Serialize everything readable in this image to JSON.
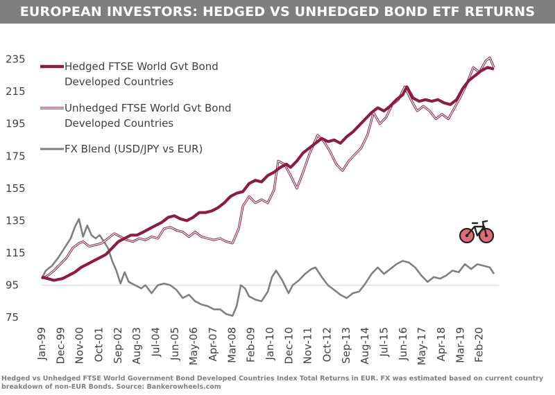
{
  "title": "EUROPEAN INVESTORS: HEDGED VS UNHEDGED BOND ETF RETURNS",
  "footnote": "Hedged vs Unhedged FTSE World Government Bond Developed Countries Index Total Returns in EUR. FX was estimated based on current country breakdown of non-EUR Bonds. Source: Bankerowheels.com",
  "icon": "bicycle-icon",
  "colors": {
    "hedged": "#8b1e3f",
    "unhedged": "#8b1e3f",
    "fx": "#7f7f7f",
    "bike": "#e06c7a"
  },
  "chart_data": {
    "type": "line",
    "title": "EUROPEAN INVESTORS: HEDGED VS UNHEDGED BOND ETF RETURNS",
    "ylim": [
      75,
      240
    ],
    "yticks": [
      75,
      95,
      115,
      135,
      155,
      175,
      195,
      215,
      235
    ],
    "xrange": [
      1999.0,
      2021.0
    ],
    "xticks": [
      {
        "label": "Jan-99",
        "x": 1999.0
      },
      {
        "label": "Dec-99",
        "x": 1999.92
      },
      {
        "label": "Nov-00",
        "x": 2000.83
      },
      {
        "label": "Oct-01",
        "x": 2001.75
      },
      {
        "label": "Sep-02",
        "x": 2002.67
      },
      {
        "label": "Aug-03",
        "x": 2003.58
      },
      {
        "label": "Jul-04",
        "x": 2004.5
      },
      {
        "label": "Jun-05",
        "x": 2005.42
      },
      {
        "label": "May-06",
        "x": 2006.33
      },
      {
        "label": "Apr-07",
        "x": 2007.25
      },
      {
        "label": "Mar-08",
        "x": 2008.17
      },
      {
        "label": "Feb-09",
        "x": 2009.08
      },
      {
        "label": "Jan-10",
        "x": 2010.0
      },
      {
        "label": "Dec-10",
        "x": 2010.92
      },
      {
        "label": "Nov-11",
        "x": 2011.83
      },
      {
        "label": "Oct-12",
        "x": 2012.75
      },
      {
        "label": "Sep-13",
        "x": 2013.67
      },
      {
        "label": "Aug-14",
        "x": 2014.58
      },
      {
        "label": "Jul-15",
        "x": 2015.5
      },
      {
        "label": "Jun-16",
        "x": 2016.42
      },
      {
        "label": "May-17",
        "x": 2017.33
      },
      {
        "label": "Apr-18",
        "x": 2018.25
      },
      {
        "label": "Mar-19",
        "x": 2019.17
      },
      {
        "label": "Feb-20",
        "x": 2020.08
      }
    ],
    "series": [
      {
        "name": "Hedged FTSE World Gvt Bond Developed Countries",
        "legend_lines": [
          "Hedged FTSE World Gvt Bond",
          "Developed Countries"
        ],
        "style": "thick",
        "points": [
          [
            1999.0,
            100
          ],
          [
            1999.3,
            99
          ],
          [
            1999.6,
            98
          ],
          [
            2000.0,
            99
          ],
          [
            2000.3,
            101
          ],
          [
            2000.6,
            103
          ],
          [
            2000.9,
            106
          ],
          [
            2001.2,
            108
          ],
          [
            2001.5,
            110
          ],
          [
            2001.8,
            112
          ],
          [
            2002.1,
            114
          ],
          [
            2002.4,
            118
          ],
          [
            2002.7,
            122
          ],
          [
            2003.0,
            124
          ],
          [
            2003.3,
            126
          ],
          [
            2003.6,
            126
          ],
          [
            2003.9,
            128
          ],
          [
            2004.2,
            130
          ],
          [
            2004.5,
            132
          ],
          [
            2004.8,
            134
          ],
          [
            2005.1,
            137
          ],
          [
            2005.4,
            138
          ],
          [
            2005.7,
            136
          ],
          [
            2006.0,
            135
          ],
          [
            2006.3,
            137
          ],
          [
            2006.6,
            140
          ],
          [
            2006.9,
            140
          ],
          [
            2007.2,
            141
          ],
          [
            2007.5,
            143
          ],
          [
            2007.8,
            146
          ],
          [
            2008.1,
            150
          ],
          [
            2008.4,
            152
          ],
          [
            2008.7,
            153
          ],
          [
            2009.0,
            158
          ],
          [
            2009.3,
            160
          ],
          [
            2009.6,
            159
          ],
          [
            2009.9,
            163
          ],
          [
            2010.2,
            165
          ],
          [
            2010.5,
            168
          ],
          [
            2010.8,
            170
          ],
          [
            2011.0,
            168
          ],
          [
            2011.3,
            172
          ],
          [
            2011.6,
            177
          ],
          [
            2011.9,
            180
          ],
          [
            2012.2,
            183
          ],
          [
            2012.5,
            186
          ],
          [
            2012.8,
            184
          ],
          [
            2013.1,
            185
          ],
          [
            2013.4,
            183
          ],
          [
            2013.7,
            187
          ],
          [
            2014.0,
            190
          ],
          [
            2014.3,
            194
          ],
          [
            2014.6,
            198
          ],
          [
            2014.9,
            202
          ],
          [
            2015.2,
            205
          ],
          [
            2015.5,
            203
          ],
          [
            2015.8,
            206
          ],
          [
            2016.1,
            210
          ],
          [
            2016.4,
            213
          ],
          [
            2016.6,
            218
          ],
          [
            2016.9,
            211
          ],
          [
            2017.2,
            209
          ],
          [
            2017.5,
            210
          ],
          [
            2017.8,
            209
          ],
          [
            2018.1,
            210
          ],
          [
            2018.4,
            208
          ],
          [
            2018.7,
            207
          ],
          [
            2019.0,
            210
          ],
          [
            2019.3,
            217
          ],
          [
            2019.6,
            222
          ],
          [
            2019.9,
            225
          ],
          [
            2020.2,
            228
          ],
          [
            2020.5,
            230
          ],
          [
            2020.8,
            229
          ]
        ]
      },
      {
        "name": "Unhedged FTSE World Gvt Bond Developed Countries",
        "legend_lines": [
          "Unhedged FTSE World Gvt Bond",
          "Developed Countries"
        ],
        "style": "double",
        "points": [
          [
            1999.0,
            99
          ],
          [
            1999.3,
            101
          ],
          [
            1999.6,
            104
          ],
          [
            1999.9,
            108
          ],
          [
            2000.2,
            112
          ],
          [
            2000.5,
            118
          ],
          [
            2000.8,
            121
          ],
          [
            2001.0,
            122
          ],
          [
            2001.3,
            119
          ],
          [
            2001.6,
            120
          ],
          [
            2001.9,
            121
          ],
          [
            2002.2,
            124
          ],
          [
            2002.5,
            127
          ],
          [
            2002.8,
            125
          ],
          [
            2003.1,
            123
          ],
          [
            2003.4,
            122
          ],
          [
            2003.7,
            124
          ],
          [
            2004.0,
            123
          ],
          [
            2004.3,
            125
          ],
          [
            2004.6,
            124
          ],
          [
            2004.9,
            130
          ],
          [
            2005.2,
            131
          ],
          [
            2005.5,
            129
          ],
          [
            2005.8,
            128
          ],
          [
            2006.1,
            125
          ],
          [
            2006.4,
            128
          ],
          [
            2006.7,
            125
          ],
          [
            2007.0,
            124
          ],
          [
            2007.3,
            123
          ],
          [
            2007.6,
            124
          ],
          [
            2007.9,
            122
          ],
          [
            2008.2,
            121
          ],
          [
            2008.5,
            130
          ],
          [
            2008.7,
            144
          ],
          [
            2009.0,
            150
          ],
          [
            2009.3,
            146
          ],
          [
            2009.6,
            148
          ],
          [
            2009.9,
            146
          ],
          [
            2010.2,
            154
          ],
          [
            2010.4,
            172
          ],
          [
            2010.7,
            170
          ],
          [
            2011.0,
            163
          ],
          [
            2011.3,
            155
          ],
          [
            2011.6,
            165
          ],
          [
            2011.9,
            176
          ],
          [
            2012.1,
            182
          ],
          [
            2012.3,
            188
          ],
          [
            2012.6,
            184
          ],
          [
            2012.9,
            178
          ],
          [
            2013.2,
            170
          ],
          [
            2013.5,
            166
          ],
          [
            2013.8,
            172
          ],
          [
            2014.1,
            176
          ],
          [
            2014.4,
            180
          ],
          [
            2014.7,
            188
          ],
          [
            2015.0,
            202
          ],
          [
            2015.3,
            195
          ],
          [
            2015.6,
            199
          ],
          [
            2015.9,
            207
          ],
          [
            2016.2,
            210
          ],
          [
            2016.5,
            218
          ],
          [
            2016.8,
            210
          ],
          [
            2017.1,
            203
          ],
          [
            2017.4,
            206
          ],
          [
            2017.7,
            203
          ],
          [
            2018.0,
            198
          ],
          [
            2018.3,
            201
          ],
          [
            2018.6,
            198
          ],
          [
            2018.9,
            205
          ],
          [
            2019.2,
            212
          ],
          [
            2019.5,
            220
          ],
          [
            2019.8,
            230
          ],
          [
            2020.1,
            227
          ],
          [
            2020.4,
            234
          ],
          [
            2020.6,
            236
          ],
          [
            2020.8,
            230
          ]
        ]
      },
      {
        "name": "FX Blend (USD/JPY vs EUR)",
        "legend_lines": [
          "FX Blend (USD/JPY vs EUR)"
        ],
        "style": "single",
        "points": [
          [
            1999.0,
            99
          ],
          [
            1999.2,
            104
          ],
          [
            1999.5,
            107
          ],
          [
            1999.8,
            112
          ],
          [
            2000.1,
            118
          ],
          [
            2000.4,
            124
          ],
          [
            2000.6,
            131
          ],
          [
            2000.8,
            136
          ],
          [
            2001.0,
            125
          ],
          [
            2001.2,
            132
          ],
          [
            2001.4,
            126
          ],
          [
            2001.6,
            124
          ],
          [
            2001.8,
            126
          ],
          [
            2002.0,
            122
          ],
          [
            2002.2,
            118
          ],
          [
            2002.4,
            110
          ],
          [
            2002.6,
            104
          ],
          [
            2002.8,
            96
          ],
          [
            2003.0,
            103
          ],
          [
            2003.2,
            97
          ],
          [
            2003.5,
            95
          ],
          [
            2003.8,
            93
          ],
          [
            2004.0,
            95
          ],
          [
            2004.3,
            90
          ],
          [
            2004.6,
            95
          ],
          [
            2004.9,
            96
          ],
          [
            2005.2,
            95
          ],
          [
            2005.5,
            92
          ],
          [
            2005.8,
            87
          ],
          [
            2006.1,
            89
          ],
          [
            2006.4,
            85
          ],
          [
            2006.7,
            83
          ],
          [
            2007.0,
            82
          ],
          [
            2007.3,
            80
          ],
          [
            2007.6,
            80
          ],
          [
            2007.9,
            77
          ],
          [
            2008.2,
            76
          ],
          [
            2008.4,
            82
          ],
          [
            2008.6,
            95
          ],
          [
            2008.8,
            93
          ],
          [
            2009.0,
            88
          ],
          [
            2009.3,
            86
          ],
          [
            2009.6,
            85
          ],
          [
            2009.9,
            91
          ],
          [
            2010.1,
            100
          ],
          [
            2010.3,
            104
          ],
          [
            2010.6,
            98
          ],
          [
            2010.9,
            90
          ],
          [
            2011.1,
            95
          ],
          [
            2011.4,
            98
          ],
          [
            2011.7,
            102
          ],
          [
            2012.0,
            105
          ],
          [
            2012.2,
            106
          ],
          [
            2012.5,
            100
          ],
          [
            2012.8,
            95
          ],
          [
            2013.1,
            92
          ],
          [
            2013.4,
            89
          ],
          [
            2013.7,
            87
          ],
          [
            2014.0,
            90
          ],
          [
            2014.3,
            91
          ],
          [
            2014.6,
            96
          ],
          [
            2014.9,
            102
          ],
          [
            2015.2,
            106
          ],
          [
            2015.5,
            102
          ],
          [
            2015.8,
            105
          ],
          [
            2016.1,
            108
          ],
          [
            2016.4,
            110
          ],
          [
            2016.7,
            109
          ],
          [
            2017.0,
            106
          ],
          [
            2017.3,
            101
          ],
          [
            2017.6,
            97
          ],
          [
            2017.9,
            100
          ],
          [
            2018.2,
            99
          ],
          [
            2018.5,
            101
          ],
          [
            2018.8,
            104
          ],
          [
            2019.1,
            103
          ],
          [
            2019.4,
            108
          ],
          [
            2019.7,
            105
          ],
          [
            2020.0,
            108
          ],
          [
            2020.3,
            107
          ],
          [
            2020.6,
            106
          ],
          [
            2020.8,
            102
          ]
        ]
      }
    ]
  }
}
